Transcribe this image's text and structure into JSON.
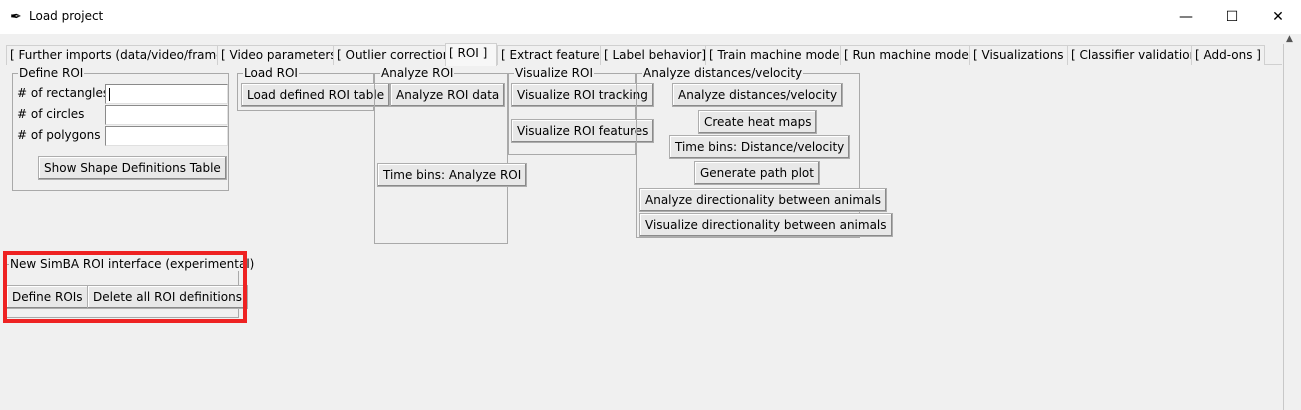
{
  "window": {
    "title": "Load project",
    "app_icon": "feather-icon",
    "minimize": "—",
    "maximize": "☐",
    "close": "✕"
  },
  "tabs": [
    "[ Further imports (data/video/frames) ]",
    "[ Video parameters ]",
    "[ Outlier correction ]",
    "[ ROI ]",
    "[ Extract features ]",
    "[ Label behavior]",
    "[ Train machine model ]",
    "[ Run machine model ]",
    "[ Visualizations ]",
    "[ Classifier validation ]",
    "[ Add-ons ]"
  ],
  "active_tab": "[ ROI ]",
  "define_roi": {
    "label": "Define ROI",
    "rectangles_label": "# of rectangles",
    "circles_label": "# of circles",
    "polygons_label": "# of polygons",
    "rectangles_value": "",
    "circles_value": "",
    "polygons_value": "",
    "show_table_button": "Show Shape Definitions Table"
  },
  "load_roi": {
    "label": "Load ROI",
    "load_button": "Load defined ROI table"
  },
  "analyze_roi": {
    "label": "Analyze ROI",
    "analyze_button": "Analyze ROI data",
    "time_bins_button": "Time bins: Analyze ROI"
  },
  "visualize_roi": {
    "label": "Visualize ROI",
    "tracking_button": "Visualize ROI tracking",
    "features_button": "Visualize ROI features"
  },
  "analyze_distances": {
    "label": "Analyze distances/velocity",
    "buttons": [
      "Analyze distances/velocity",
      "Create heat maps",
      "Time bins: Distance/velocity",
      "Generate path plot",
      "Analyze directionality between animals",
      "Visualize directionality between animals"
    ]
  },
  "new_interface": {
    "label": "New SimBA ROI interface (experimental)",
    "define_button": "Define ROIs",
    "delete_button": "Delete all ROI definitions"
  },
  "colors": {
    "highlight": "#ee2222",
    "background": "#f0f0f0"
  }
}
